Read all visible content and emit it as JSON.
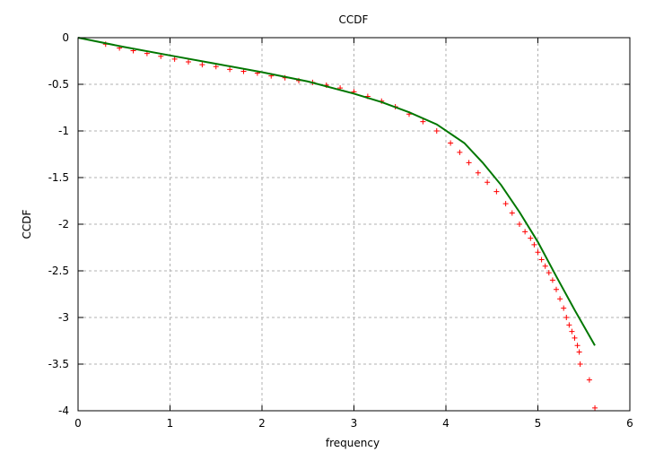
{
  "chart_data": {
    "type": "scatter",
    "title": "CCDF",
    "xlabel": "frequency",
    "ylabel": "CCDF",
    "xlim": [
      0,
      6
    ],
    "ylim": [
      -4,
      0
    ],
    "grid": true,
    "x_ticks": [
      "0",
      "1",
      "2",
      "3",
      "4",
      "5",
      "6"
    ],
    "y_ticks": [
      "0",
      "-0.5",
      "-1",
      "-1.5",
      "-2",
      "-2.5",
      "-3",
      "-3.5",
      "-4"
    ],
    "series": [
      {
        "kind": "points",
        "color": "#ff0000",
        "marker": "+",
        "x": [
          0.3,
          0.45,
          0.6,
          0.75,
          0.9,
          1.05,
          1.2,
          1.35,
          1.5,
          1.65,
          1.8,
          1.95,
          2.1,
          2.25,
          2.4,
          2.55,
          2.7,
          2.85,
          3.0,
          3.15,
          3.3,
          3.45,
          3.6,
          3.75,
          3.9,
          4.05,
          4.15,
          4.25,
          4.35,
          4.45,
          4.55,
          4.65,
          4.72,
          4.8,
          4.86,
          4.92,
          4.96,
          5.0,
          5.04,
          5.08,
          5.12,
          5.16,
          5.2,
          5.24,
          5.28,
          5.31,
          5.34,
          5.37,
          5.4,
          5.43,
          5.45,
          5.46,
          5.56,
          5.62
        ],
        "y": [
          -0.07,
          -0.11,
          -0.14,
          -0.17,
          -0.2,
          -0.23,
          -0.26,
          -0.29,
          -0.31,
          -0.34,
          -0.36,
          -0.38,
          -0.41,
          -0.43,
          -0.46,
          -0.48,
          -0.51,
          -0.54,
          -0.58,
          -0.63,
          -0.68,
          -0.74,
          -0.82,
          -0.9,
          -1.0,
          -1.13,
          -1.23,
          -1.34,
          -1.45,
          -1.55,
          -1.65,
          -1.78,
          -1.88,
          -2.0,
          -2.08,
          -2.15,
          -2.22,
          -2.3,
          -2.38,
          -2.45,
          -2.52,
          -2.6,
          -2.7,
          -2.8,
          -2.9,
          -3.0,
          -3.08,
          -3.15,
          -3.22,
          -3.3,
          -3.37,
          -3.5,
          -3.67,
          -3.97
        ]
      },
      {
        "kind": "line",
        "color": "#007700",
        "x": [
          0,
          0.5,
          1.0,
          1.5,
          2.0,
          2.5,
          3.0,
          3.3,
          3.6,
          3.9,
          4.2,
          4.4,
          4.6,
          4.8,
          5.0,
          5.2,
          5.4,
          5.62
        ],
        "y": [
          0,
          -0.1,
          -0.19,
          -0.28,
          -0.37,
          -0.47,
          -0.6,
          -0.69,
          -0.8,
          -0.93,
          -1.13,
          -1.34,
          -1.58,
          -1.87,
          -2.19,
          -2.56,
          -2.92,
          -3.3
        ]
      }
    ]
  }
}
